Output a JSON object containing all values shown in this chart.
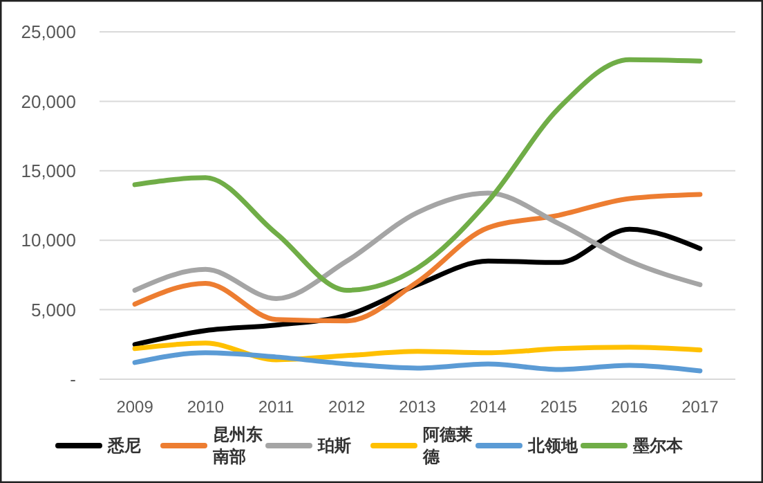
{
  "chart_data": {
    "type": "line",
    "categories": [
      "2009",
      "2010",
      "2011",
      "2012",
      "2013",
      "2014",
      "2015",
      "2016",
      "2017"
    ],
    "series": [
      {
        "name": "悉尼",
        "color": "#000000",
        "values": [
          2500,
          3500,
          3900,
          4600,
          6800,
          8500,
          8400,
          10800,
          9400
        ]
      },
      {
        "name": "昆州东南部",
        "color": "#ed7d31",
        "values": [
          5400,
          6900,
          4300,
          4200,
          7000,
          10900,
          11800,
          13000,
          13300
        ]
      },
      {
        "name": "珀斯",
        "color": "#a5a5a5",
        "values": [
          6400,
          7900,
          5800,
          8500,
          12000,
          13400,
          11200,
          8500,
          6800
        ]
      },
      {
        "name": "阿德莱德",
        "color": "#ffc000",
        "values": [
          2200,
          2600,
          1400,
          1700,
          2000,
          1900,
          2200,
          2300,
          2100
        ]
      },
      {
        "name": "北领地",
        "color": "#5b9bd5",
        "values": [
          1200,
          1900,
          1600,
          1100,
          800,
          1100,
          700,
          1000,
          600
        ]
      },
      {
        "name": "墨尔本",
        "color": "#70ad47",
        "values": [
          14000,
          14500,
          10500,
          6400,
          8000,
          12800,
          19500,
          23000,
          22900
        ]
      }
    ],
    "ylim": [
      0,
      25000
    ],
    "yticks": [
      {
        "value": 0,
        "label": "-"
      },
      {
        "value": 5000,
        "label": "5,000"
      },
      {
        "value": 10000,
        "label": "10,000"
      },
      {
        "value": 15000,
        "label": "15,000"
      },
      {
        "value": 20000,
        "label": "20,000"
      },
      {
        "value": 25000,
        "label": "25,000"
      }
    ],
    "grid": "y",
    "legend": "bottom",
    "marker": "none",
    "line_style": "solid"
  }
}
